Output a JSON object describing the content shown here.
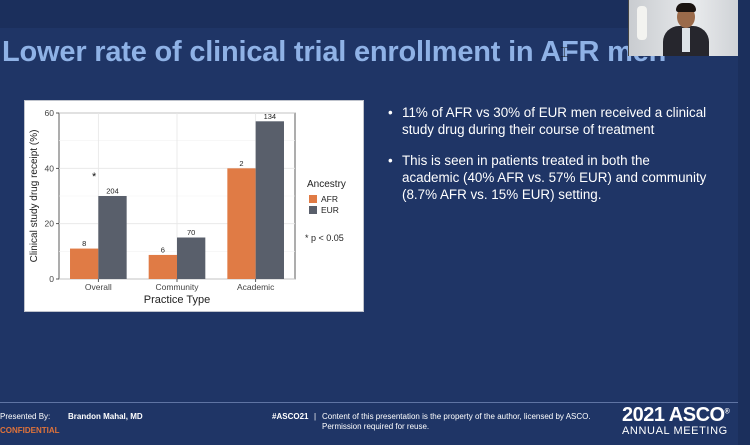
{
  "slide": {
    "title": "Lower rate of clinical trial enrollment in AFR men",
    "bullets": [
      "11% of AFR vs 30% of EUR men received a clinical study drug during their course of treatment",
      "This is seen in patients treated in both the academic (40% AFR vs. 57% EUR) and community (8.7% AFR vs. 15% EUR) setting."
    ],
    "bullet_glyph": "•"
  },
  "footer": {
    "presented_by": "Presented By:",
    "presenter": "Brandon Mahal, MD",
    "confidential": "CONFIDENTIAL",
    "hashtag": "#ASCO21",
    "separator": "|",
    "notice_line1": "Content of this presentation is the property of the author, licensed by ASCO.",
    "notice_line2": "Permission required for reuse.",
    "meeting_year": "2021 ASCO",
    "meeting_name": "ANNUAL MEETING",
    "trademark": "®"
  },
  "colors": {
    "background": "#1f3566",
    "title": "#8fb2e6",
    "afr": "#e07b45",
    "eur": "#595f6b",
    "confidential": "#e0733a"
  },
  "chart_data": {
    "type": "bar",
    "categories": [
      "Overall",
      "Community",
      "Academic"
    ],
    "series": [
      {
        "name": "AFR",
        "values": [
          11,
          8.7,
          40
        ],
        "labels": [
          "8",
          "6",
          "2"
        ]
      },
      {
        "name": "EUR",
        "values": [
          30,
          15,
          57
        ],
        "labels": [
          "204",
          "70",
          "134"
        ]
      }
    ],
    "xlabel": "Practice Type",
    "ylabel": "Clinical study drug receipt (%)",
    "ylim": [
      0,
      60
    ],
    "yticks": [
      0,
      20,
      40,
      60
    ],
    "legend_title": "Ancestry",
    "legend_position": "right",
    "significance_marker": "*",
    "significance_category": "Overall",
    "annotation": "* p < 0.05",
    "grid": true
  }
}
